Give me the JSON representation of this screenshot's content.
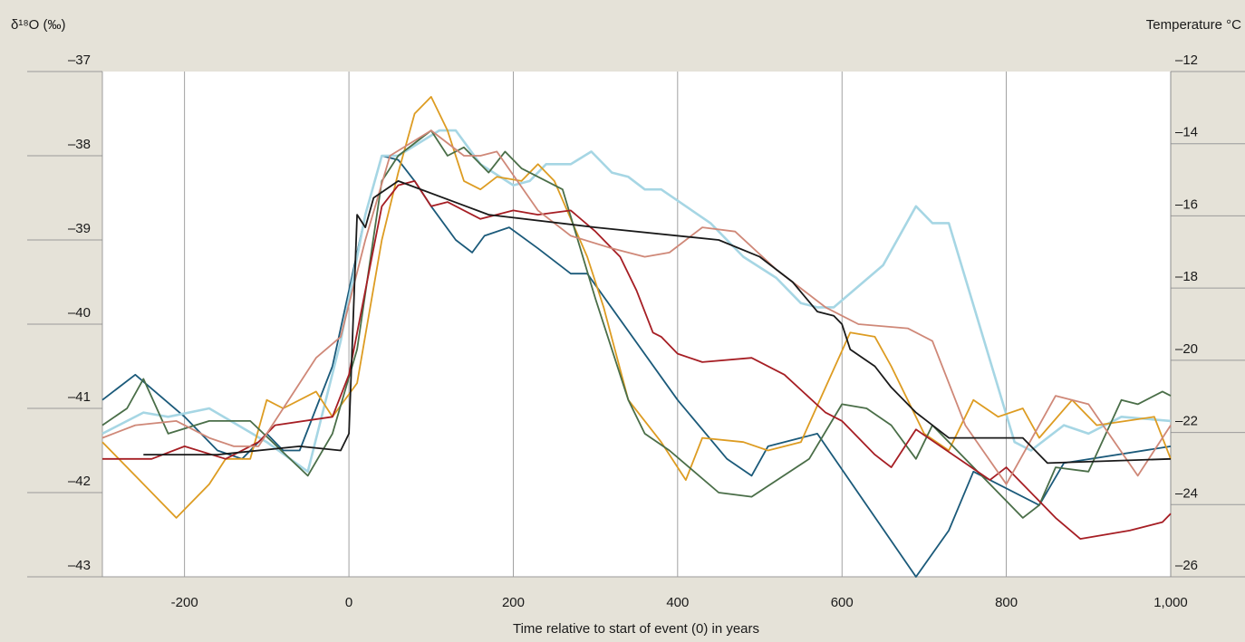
{
  "chart_data": {
    "type": "line",
    "y_label": "δ¹⁸O (‰)",
    "y2_label": "Temperature °C",
    "x_label": "Time relative to start of event (0) in years",
    "xlim": [
      -300,
      1000
    ],
    "xticks": [
      -200,
      0,
      200,
      400,
      600,
      800,
      {
        "value": 1000,
        "label": "1,000"
      }
    ],
    "ylim": [
      -43,
      -37
    ],
    "yticks": [
      {
        "value": -37,
        "label": "–37"
      },
      {
        "value": -38,
        "label": "–38"
      },
      {
        "value": -39,
        "label": "–39"
      },
      {
        "value": -40,
        "label": "–40"
      },
      {
        "value": -41,
        "label": "–41"
      },
      {
        "value": -42,
        "label": "–42"
      },
      {
        "value": -43,
        "label": "–43"
      }
    ],
    "y2lim": [
      -26,
      -12
    ],
    "y2ticks": [
      {
        "value": -12,
        "label": "–12"
      },
      {
        "value": -14,
        "label": "–14"
      },
      {
        "value": -16,
        "label": "–16"
      },
      {
        "value": -18,
        "label": "–18"
      },
      {
        "value": -20,
        "label": "–20"
      },
      {
        "value": -22,
        "label": "–22"
      },
      {
        "value": -24,
        "label": "–24"
      },
      {
        "value": -26,
        "label": "–26"
      }
    ],
    "grid": true,
    "series": [
      {
        "color": "#1b5a7a",
        "x": [
          -300,
          -260,
          -200,
          -160,
          -130,
          -100,
          -80,
          -60,
          -40,
          -20,
          0,
          20,
          40,
          60,
          80,
          100,
          130,
          150,
          165,
          195,
          230,
          270,
          290,
          400,
          460,
          490,
          510,
          570,
          690,
          730,
          760,
          840,
          870,
          1000
        ],
        "values": [
          -40.9,
          -40.6,
          -41.1,
          -41.5,
          -41.6,
          -41.3,
          -41.5,
          -41.5,
          -41.0,
          -40.5,
          -39.6,
          -38.7,
          -38.0,
          -38.05,
          -38.3,
          -38.6,
          -39.0,
          -39.15,
          -38.95,
          -38.85,
          -39.1,
          -39.4,
          -39.4,
          -40.9,
          -41.6,
          -41.8,
          -41.45,
          -41.3,
          -43.0,
          -42.45,
          -41.75,
          -42.15,
          -41.65,
          -41.45
        ]
      },
      {
        "color": "#a6d6e4",
        "x": [
          -300,
          -250,
          -220,
          -170,
          -100,
          -50,
          -10,
          20,
          40,
          60,
          110,
          130,
          160,
          200,
          220,
          240,
          270,
          295,
          320,
          340,
          360,
          380,
          440,
          480,
          520,
          550,
          570,
          590,
          620,
          650,
          690,
          710,
          730,
          810,
          830,
          870,
          900,
          940,
          1000
        ],
        "values": [
          -41.3,
          -41.05,
          -41.1,
          -41.0,
          -41.4,
          -41.75,
          -40.2,
          -38.7,
          -38.0,
          -38.0,
          -37.7,
          -37.7,
          -38.1,
          -38.35,
          -38.3,
          -38.1,
          -38.1,
          -37.95,
          -38.2,
          -38.25,
          -38.4,
          -38.4,
          -38.8,
          -39.2,
          -39.45,
          -39.75,
          -39.8,
          -39.8,
          -39.55,
          -39.3,
          -38.6,
          -38.8,
          -38.8,
          -41.4,
          -41.5,
          -41.2,
          -41.3,
          -41.1,
          -41.15
        ]
      },
      {
        "color": "#dd9c22",
        "x": [
          -300,
          -260,
          -210,
          -170,
          -150,
          -120,
          -100,
          -80,
          -40,
          -20,
          10,
          40,
          60,
          80,
          100,
          120,
          140,
          160,
          180,
          210,
          230,
          250,
          290,
          310,
          340,
          380,
          410,
          430,
          480,
          510,
          550,
          610,
          640,
          660,
          700,
          730,
          760,
          790,
          820,
          840,
          880,
          910,
          980,
          1000
        ],
        "values": [
          -41.4,
          -41.8,
          -42.3,
          -41.9,
          -41.6,
          -41.6,
          -40.9,
          -41.0,
          -40.8,
          -41.1,
          -40.7,
          -39.0,
          -38.2,
          -37.5,
          -37.3,
          -37.7,
          -38.3,
          -38.4,
          -38.25,
          -38.3,
          -38.1,
          -38.3,
          -39.2,
          -39.8,
          -40.9,
          -41.4,
          -41.85,
          -41.35,
          -41.4,
          -41.5,
          -41.4,
          -40.1,
          -40.15,
          -40.5,
          -41.3,
          -41.5,
          -40.9,
          -41.1,
          -41.0,
          -41.35,
          -40.9,
          -41.2,
          -41.1,
          -41.6
        ]
      },
      {
        "color": "#4a6e48",
        "x": [
          -300,
          -270,
          -250,
          -220,
          -170,
          -120,
          -50,
          -20,
          10,
          40,
          60,
          100,
          120,
          140,
          170,
          190,
          210,
          260,
          300,
          340,
          360,
          390,
          450,
          490,
          560,
          600,
          630,
          660,
          690,
          710,
          820,
          840,
          860,
          900,
          940,
          960,
          990,
          1000
        ],
        "values": [
          -41.2,
          -41.0,
          -40.65,
          -41.3,
          -41.15,
          -41.15,
          -41.8,
          -41.3,
          -40.3,
          -38.3,
          -38.0,
          -37.7,
          -38.0,
          -37.9,
          -38.2,
          -37.95,
          -38.15,
          -38.4,
          -39.7,
          -40.9,
          -41.3,
          -41.5,
          -42.0,
          -42.05,
          -41.6,
          -40.95,
          -41.0,
          -41.2,
          -41.6,
          -41.2,
          -42.3,
          -42.15,
          -41.7,
          -41.75,
          -40.9,
          -40.95,
          -40.8,
          -40.85
        ]
      },
      {
        "color": "#a61e24",
        "x": [
          -300,
          -240,
          -200,
          -150,
          -110,
          -90,
          -20,
          0,
          20,
          40,
          60,
          80,
          100,
          120,
          160,
          200,
          230,
          270,
          300,
          330,
          350,
          370,
          380,
          400,
          430,
          490,
          530,
          580,
          600,
          640,
          660,
          690,
          780,
          800,
          860,
          890,
          950,
          990,
          1000
        ],
        "values": [
          -41.6,
          -41.6,
          -41.45,
          -41.6,
          -41.4,
          -41.2,
          -41.1,
          -40.6,
          -39.6,
          -38.6,
          -38.35,
          -38.3,
          -38.6,
          -38.55,
          -38.75,
          -38.65,
          -38.7,
          -38.65,
          -38.9,
          -39.2,
          -39.6,
          -40.1,
          -40.15,
          -40.35,
          -40.45,
          -40.4,
          -40.6,
          -41.05,
          -41.15,
          -41.55,
          -41.7,
          -41.25,
          -41.85,
          -41.7,
          -42.3,
          -42.55,
          -42.45,
          -42.35,
          -42.25
        ]
      },
      {
        "color": "#cf8878",
        "x": [
          -300,
          -260,
          -210,
          -170,
          -140,
          -110,
          -60,
          -40,
          -10,
          20,
          50,
          100,
          140,
          160,
          180,
          230,
          270,
          320,
          360,
          390,
          430,
          470,
          520,
          580,
          620,
          680,
          710,
          750,
          800,
          860,
          900,
          960,
          1000
        ],
        "values": [
          -41.35,
          -41.2,
          -41.15,
          -41.35,
          -41.45,
          -41.45,
          -40.7,
          -40.4,
          -40.15,
          -39.0,
          -38.0,
          -37.7,
          -38.0,
          -38.0,
          -37.95,
          -38.65,
          -38.95,
          -39.1,
          -39.2,
          -39.15,
          -38.85,
          -38.9,
          -39.35,
          -39.8,
          -40.0,
          -40.05,
          -40.2,
          -41.2,
          -41.9,
          -40.85,
          -40.95,
          -41.8,
          -41.2
        ]
      },
      {
        "color": "#1a1a1a",
        "x": [
          -250,
          -160,
          -60,
          -10,
          0,
          10,
          20,
          30,
          60,
          170,
          300,
          450,
          500,
          540,
          570,
          590,
          600,
          610,
          640,
          660,
          690,
          710,
          730,
          820,
          850,
          1000
        ],
        "values": [
          -41.55,
          -41.55,
          -41.45,
          -41.5,
          -41.3,
          -38.7,
          -38.85,
          -38.5,
          -38.3,
          -38.7,
          -38.85,
          -39.0,
          -39.2,
          -39.5,
          -39.85,
          -39.9,
          -40.0,
          -40.3,
          -40.5,
          -40.75,
          -41.05,
          -41.2,
          -41.35,
          -41.35,
          -41.65,
          -41.6
        ]
      }
    ]
  }
}
